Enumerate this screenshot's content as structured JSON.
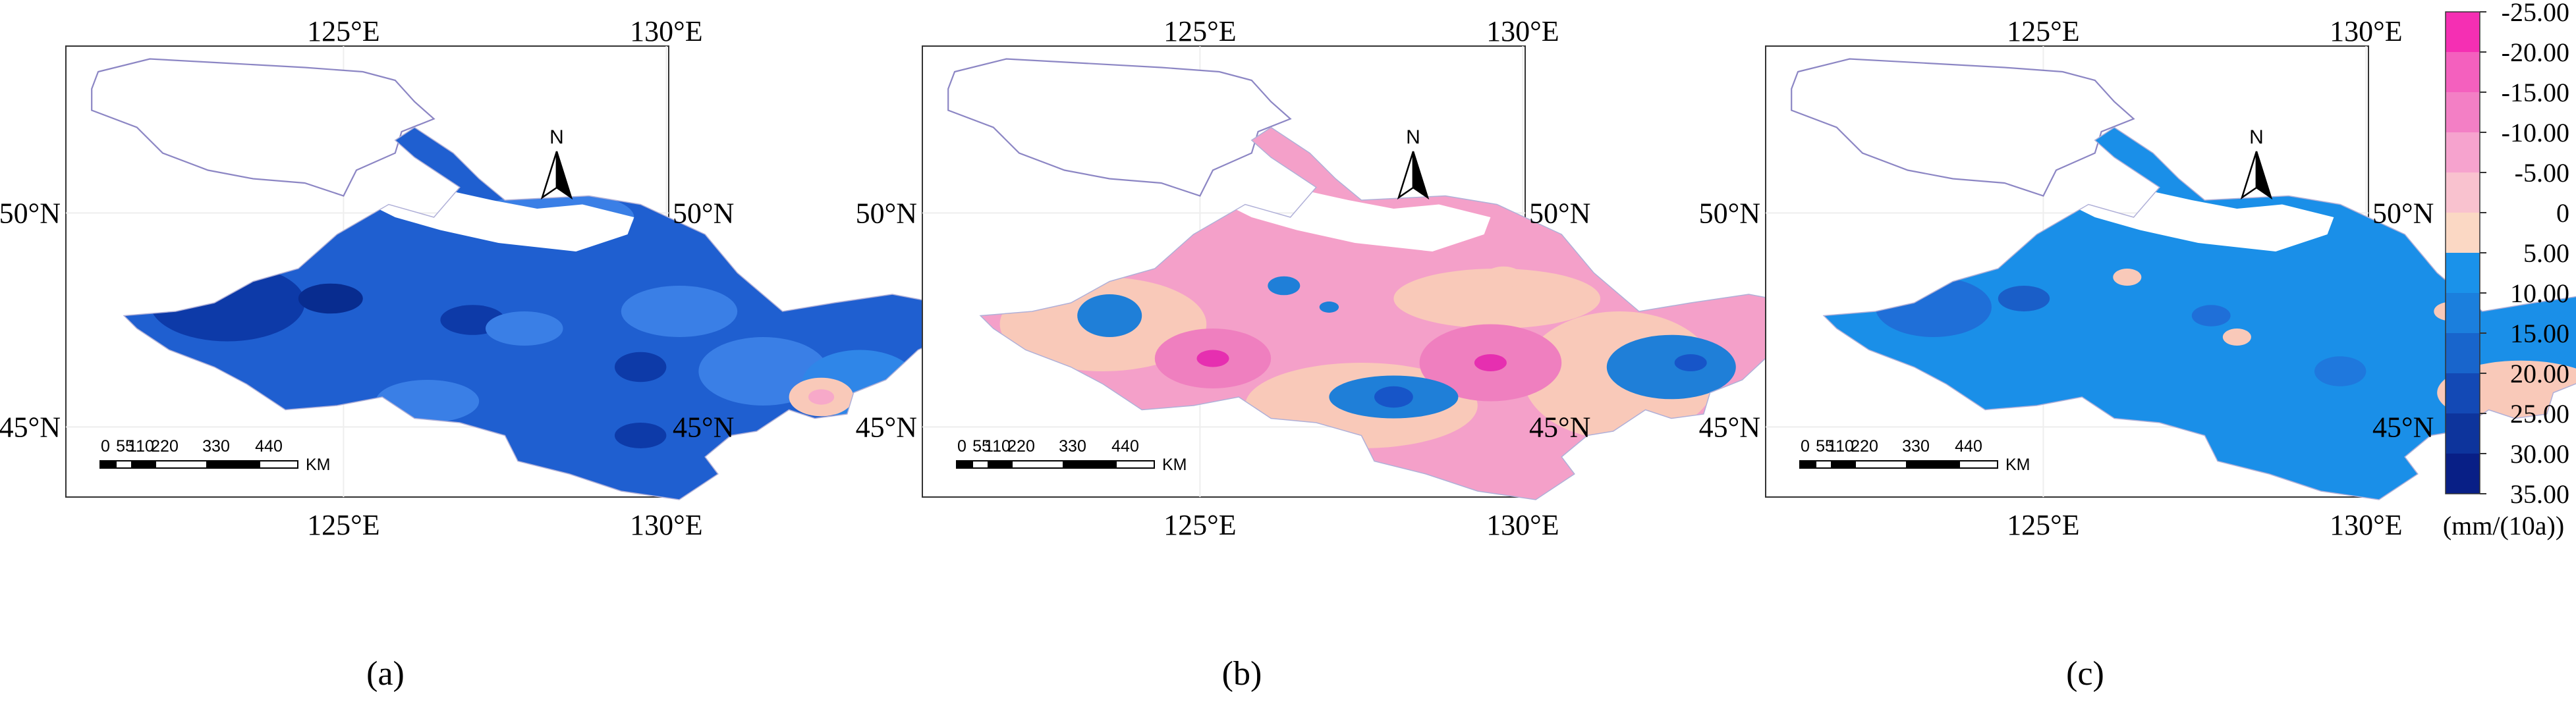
{
  "panels": [
    {
      "id": "a",
      "caption": "(a)",
      "top_lon_labels": [
        "125°E",
        "130°E"
      ],
      "bottom_lon_labels": [
        "125°E",
        "130°E"
      ],
      "left_lat_labels": [
        "50°N",
        "45°N"
      ],
      "right_lat_labels": [
        "50°N",
        "45°N"
      ],
      "north_label": "N",
      "scale_numbers": [
        "0",
        "55",
        "110",
        "220",
        "330",
        "440"
      ],
      "scale_unit": "KM",
      "base_fill": "#1f5fd0",
      "blobs": [
        {
          "lon": 123.2,
          "lat": 47.9,
          "rx": 1.2,
          "ry": 0.9,
          "color": "#0d3aa8"
        },
        {
          "lon": 124.8,
          "lat": 48.0,
          "rx": 0.5,
          "ry": 0.35,
          "color": "#082c8f"
        },
        {
          "lon": 127.0,
          "lat": 47.5,
          "rx": 0.5,
          "ry": 0.35,
          "color": "#0d3aa8"
        },
        {
          "lon": 128.3,
          "lat": 49.9,
          "rx": 1.2,
          "ry": 0.6,
          "color": "#3a7fe6"
        },
        {
          "lon": 130.2,
          "lat": 47.7,
          "rx": 0.9,
          "ry": 0.6,
          "color": "#3a7fe6"
        },
        {
          "lon": 127.8,
          "lat": 47.3,
          "rx": 0.6,
          "ry": 0.4,
          "color": "#3a7fe6"
        },
        {
          "lon": 131.5,
          "lat": 46.3,
          "rx": 1.0,
          "ry": 0.8,
          "color": "#3a7fe6"
        },
        {
          "lon": 129.6,
          "lat": 46.4,
          "rx": 0.4,
          "ry": 0.35,
          "color": "#0d3aa8"
        },
        {
          "lon": 129.6,
          "lat": 44.8,
          "rx": 0.4,
          "ry": 0.3,
          "color": "#0d3aa8"
        },
        {
          "lon": 126.3,
          "lat": 45.6,
          "rx": 0.8,
          "ry": 0.5,
          "color": "#3a7fe6"
        },
        {
          "lon": 133.0,
          "lat": 46.0,
          "rx": 0.9,
          "ry": 0.8,
          "color": "#2f86e8"
        },
        {
          "lon": 132.4,
          "lat": 45.7,
          "rx": 0.5,
          "ry": 0.45,
          "color": "#f9c9b9"
        },
        {
          "lon": 132.4,
          "lat": 45.7,
          "rx": 0.2,
          "ry": 0.18,
          "color": "#f7a9c9"
        }
      ]
    },
    {
      "id": "b",
      "caption": "(b)",
      "top_lon_labels": [
        "125°E",
        "130°E"
      ],
      "bottom_lon_labels": [
        "125°E",
        "130°E"
      ],
      "left_lat_labels": [
        "50°N",
        "45°N"
      ],
      "right_lat_labels": [
        "50°N",
        "45°N"
      ],
      "north_label": "N",
      "scale_numbers": [
        "0",
        "55",
        "110",
        "220",
        "330",
        "440"
      ],
      "scale_unit": "KM",
      "base_fill": "#f4a0c9",
      "blobs": [
        {
          "lon": 123.5,
          "lat": 47.4,
          "rx": 1.6,
          "ry": 1.1,
          "color": "#f9c9b9"
        },
        {
          "lon": 129.6,
          "lat": 48.0,
          "rx": 1.6,
          "ry": 0.7,
          "color": "#f9c9b9"
        },
        {
          "lon": 131.5,
          "lat": 46.2,
          "rx": 1.5,
          "ry": 1.5,
          "color": "#f9c9b9"
        },
        {
          "lon": 127.5,
          "lat": 45.5,
          "rx": 1.8,
          "ry": 1.0,
          "color": "#f9c9b9"
        },
        {
          "lon": 125.2,
          "lat": 46.6,
          "rx": 0.9,
          "ry": 0.7,
          "color": "#ef7fbf"
        },
        {
          "lon": 125.2,
          "lat": 46.6,
          "rx": 0.25,
          "ry": 0.2,
          "color": "#e62fb0"
        },
        {
          "lon": 129.5,
          "lat": 46.5,
          "rx": 1.1,
          "ry": 0.9,
          "color": "#ef7fbf"
        },
        {
          "lon": 129.5,
          "lat": 46.5,
          "rx": 0.25,
          "ry": 0.2,
          "color": "#e62fb0"
        },
        {
          "lon": 123.6,
          "lat": 47.6,
          "rx": 0.5,
          "ry": 0.5,
          "color": "#1f7fd8"
        },
        {
          "lon": 126.3,
          "lat": 48.3,
          "rx": 0.25,
          "ry": 0.22,
          "color": "#1f7fd8"
        },
        {
          "lon": 127.0,
          "lat": 47.8,
          "rx": 0.15,
          "ry": 0.13,
          "color": "#1f7fd8"
        },
        {
          "lon": 128.0,
          "lat": 45.7,
          "rx": 1.0,
          "ry": 0.5,
          "color": "#1f7fd8"
        },
        {
          "lon": 128.0,
          "lat": 45.7,
          "rx": 0.3,
          "ry": 0.25,
          "color": "#1755c8"
        },
        {
          "lon": 132.3,
          "lat": 46.4,
          "rx": 1.0,
          "ry": 0.75,
          "color": "#1f7fd8"
        },
        {
          "lon": 132.6,
          "lat": 46.5,
          "rx": 0.25,
          "ry": 0.2,
          "color": "#1755c8"
        },
        {
          "lon": 129.7,
          "lat": 48.5,
          "rx": 0.3,
          "ry": 0.25,
          "color": "#f9c9b9"
        }
      ]
    },
    {
      "id": "c",
      "caption": "(c)",
      "top_lon_labels": [
        "125°E",
        "130°E"
      ],
      "bottom_lon_labels": [
        "125°E",
        "130°E"
      ],
      "left_lat_labels": [
        "50°N",
        "45°N"
      ],
      "right_lat_labels": [
        "50°N",
        "45°N"
      ],
      "north_label": "N",
      "scale_numbers": [
        "0",
        "55",
        "110",
        "220",
        "330",
        "440"
      ],
      "scale_unit": "KM",
      "base_fill": "#1a8fe8",
      "blobs": [
        {
          "lon": 123.3,
          "lat": 47.8,
          "rx": 0.9,
          "ry": 0.7,
          "color": "#1f6fd8"
        },
        {
          "lon": 124.7,
          "lat": 48.0,
          "rx": 0.4,
          "ry": 0.3,
          "color": "#1a5ec8"
        },
        {
          "lon": 127.6,
          "lat": 47.6,
          "rx": 0.3,
          "ry": 0.25,
          "color": "#1f6fd8"
        },
        {
          "lon": 129.6,
          "lat": 46.3,
          "rx": 0.4,
          "ry": 0.35,
          "color": "#1f78dd"
        },
        {
          "lon": 126.3,
          "lat": 48.5,
          "rx": 0.22,
          "ry": 0.2,
          "color": "#f9c9b9"
        },
        {
          "lon": 128.0,
          "lat": 47.1,
          "rx": 0.22,
          "ry": 0.2,
          "color": "#f9c9b9"
        },
        {
          "lon": 131.3,
          "lat": 47.7,
          "rx": 0.25,
          "ry": 0.22,
          "color": "#f9c9b9"
        },
        {
          "lon": 132.4,
          "lat": 45.8,
          "rx": 1.3,
          "ry": 0.75,
          "color": "#f9c9b9"
        }
      ]
    }
  ],
  "legend": {
    "labels": [
      "-25.00",
      "-20.00",
      "-15.00",
      "-10.00",
      "-5.00",
      "0",
      "5.00",
      "10.00",
      "15.00",
      "20.00",
      "25.00",
      "30.00",
      "35.00"
    ],
    "colors": [
      "#f52fb3",
      "#f460be",
      "#f37fc5",
      "#f6a3ce",
      "#f9c2cf",
      "#fbd8c4",
      "#1a92ea",
      "#1b7fdd",
      "#1865cc",
      "#1349b5",
      "#0d349c",
      "#081f86"
    ],
    "unit": "(mm/(10a))"
  }
}
